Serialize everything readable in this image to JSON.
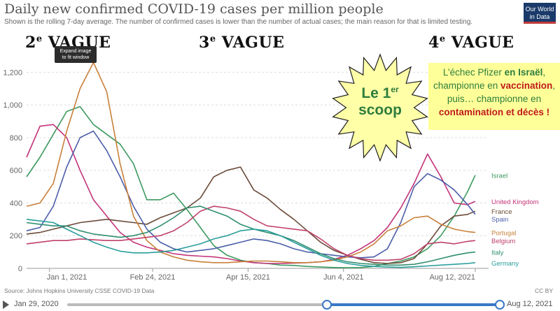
{
  "header": {
    "title": "Daily new confirmed COVID-19 cases per million people",
    "subtitle": "Shown is the rolling 7-day average. The number of confirmed cases is lower than the number of actual cases; the main reason for that is limited testing.",
    "logo_line1": "Our World",
    "logo_line2": "in Data"
  },
  "annotations": {
    "wave2_num": "2",
    "wave2_sup": "e",
    "wave2_word": " VAGUE",
    "wave3_num": "3",
    "wave3_sup": "e",
    "wave3_word": " VAGUE",
    "wave4_num": "4",
    "wave4_sup": "e",
    "wave4_word": " VAGUE",
    "tooltip_line1": "Expand image",
    "tooltip_line2": "to fit window",
    "star_line1": "Le 1",
    "star_sup": "er",
    "star_line2": "scoop",
    "callout_l1a": "L’échec Pfizer ",
    "callout_l1b": "en Israël",
    "callout_l1c": ",",
    "callout_l2a": "championne en ",
    "callout_l2b": "vaccination",
    "callout_l2c": ",",
    "callout_l3": "puis… championne en",
    "callout_l4a": "contamination et décès",
    "callout_l4b": " !"
  },
  "footer": {
    "source": "Source: Johns Hopkins University CSSE COVID-19 Data",
    "license": "CC BY"
  },
  "timeline": {
    "start_label": "Jan 29, 2020",
    "end_label": "Aug 12, 2021",
    "selected_start_fraction": 0.6,
    "selected_end_fraction": 1.0
  },
  "colors": {
    "Israel": "#3c9a5f",
    "United Kingdom": "#c2347a",
    "France": "#6b4b3a",
    "Spain": "#4c5ea9",
    "Portugal": "#c8803a",
    "Belgium": "#c0416a",
    "Italy": "#2f8f6f",
    "Germany": "#2a9d9d"
  },
  "chart_data": {
    "type": "line",
    "title": "Daily new confirmed COVID-19 cases per million people",
    "xlabel": "",
    "ylabel": "",
    "ylim": [
      0,
      1300
    ],
    "y_ticks": [
      0,
      200,
      400,
      600,
      800,
      1000,
      1200
    ],
    "y_tick_labels": [
      "0",
      "200",
      "400",
      "600",
      "800",
      "1,000",
      "1,200"
    ],
    "x_ticks": [
      "2021-01-01",
      "2021-02-24",
      "2021-04-15",
      "2021-06-04",
      "2021-08-12"
    ],
    "x_tick_labels": [
      "Jan 1, 2021",
      "Feb 24, 2021",
      "Apr 15, 2021",
      "Jun 4, 2021",
      "Aug 12, 2021"
    ],
    "xlim": [
      "2020-12-20",
      "2021-08-19"
    ],
    "grid": true,
    "legend": "line-end labels",
    "series": [
      {
        "name": "Israel",
        "x": [
          "2020-12-20",
          "2020-12-27",
          "2021-01-03",
          "2021-01-10",
          "2021-01-17",
          "2021-01-24",
          "2021-01-31",
          "2021-02-07",
          "2021-02-14",
          "2021-02-21",
          "2021-02-28",
          "2021-03-07",
          "2021-03-14",
          "2021-03-21",
          "2021-03-28",
          "2021-04-04",
          "2021-04-11",
          "2021-04-18",
          "2021-04-25",
          "2021-05-02",
          "2021-05-09",
          "2021-05-16",
          "2021-05-23",
          "2021-05-30",
          "2021-06-06",
          "2021-06-13",
          "2021-06-20",
          "2021-06-27",
          "2021-07-04",
          "2021-07-11",
          "2021-07-18",
          "2021-07-25",
          "2021-08-01",
          "2021-08-08",
          "2021-08-12"
        ],
        "values": [
          560,
          680,
          820,
          960,
          990,
          880,
          820,
          760,
          640,
          420,
          420,
          460,
          360,
          250,
          140,
          80,
          50,
          35,
          30,
          20,
          18,
          12,
          8,
          5,
          4,
          5,
          12,
          30,
          45,
          70,
          120,
          200,
          320,
          470,
          570
        ]
      },
      {
        "name": "United Kingdom",
        "x": [
          "2020-12-20",
          "2020-12-27",
          "2021-01-03",
          "2021-01-10",
          "2021-01-17",
          "2021-01-24",
          "2021-01-31",
          "2021-02-07",
          "2021-02-14",
          "2021-02-21",
          "2021-02-28",
          "2021-03-07",
          "2021-03-14",
          "2021-03-21",
          "2021-03-28",
          "2021-04-04",
          "2021-04-11",
          "2021-04-18",
          "2021-04-25",
          "2021-05-02",
          "2021-05-09",
          "2021-05-16",
          "2021-05-23",
          "2021-05-30",
          "2021-06-06",
          "2021-06-13",
          "2021-06-20",
          "2021-06-27",
          "2021-07-04",
          "2021-07-11",
          "2021-07-18",
          "2021-07-25",
          "2021-08-01",
          "2021-08-08",
          "2021-08-12"
        ],
        "values": [
          680,
          870,
          880,
          800,
          600,
          420,
          320,
          220,
          160,
          130,
          110,
          90,
          80,
          75,
          70,
          60,
          45,
          35,
          30,
          30,
          32,
          35,
          40,
          55,
          80,
          120,
          170,
          250,
          370,
          520,
          700,
          560,
          400,
          390,
          410
        ]
      },
      {
        "name": "France",
        "x": [
          "2020-12-20",
          "2020-12-27",
          "2021-01-03",
          "2021-01-10",
          "2021-01-17",
          "2021-01-24",
          "2021-01-31",
          "2021-02-07",
          "2021-02-14",
          "2021-02-21",
          "2021-02-28",
          "2021-03-07",
          "2021-03-14",
          "2021-03-21",
          "2021-03-28",
          "2021-04-04",
          "2021-04-11",
          "2021-04-18",
          "2021-04-25",
          "2021-05-02",
          "2021-05-09",
          "2021-05-16",
          "2021-05-23",
          "2021-05-30",
          "2021-06-06",
          "2021-06-13",
          "2021-06-20",
          "2021-06-27",
          "2021-07-04",
          "2021-07-11",
          "2021-07-18",
          "2021-07-25",
          "2021-08-01",
          "2021-08-08",
          "2021-08-12"
        ],
        "values": [
          210,
          220,
          240,
          260,
          280,
          290,
          300,
          290,
          280,
          270,
          310,
          340,
          370,
          430,
          560,
          600,
          620,
          480,
          430,
          360,
          300,
          230,
          160,
          110,
          80,
          55,
          35,
          30,
          35,
          60,
          150,
          260,
          320,
          330,
          350
        ]
      },
      {
        "name": "Spain",
        "x": [
          "2020-12-20",
          "2020-12-27",
          "2021-01-03",
          "2021-01-10",
          "2021-01-17",
          "2021-01-24",
          "2021-01-31",
          "2021-02-07",
          "2021-02-14",
          "2021-02-21",
          "2021-02-28",
          "2021-03-07",
          "2021-03-14",
          "2021-03-21",
          "2021-03-28",
          "2021-04-04",
          "2021-04-11",
          "2021-04-18",
          "2021-04-25",
          "2021-05-02",
          "2021-05-09",
          "2021-05-16",
          "2021-05-23",
          "2021-05-30",
          "2021-06-06",
          "2021-06-13",
          "2021-06-20",
          "2021-06-27",
          "2021-07-04",
          "2021-07-11",
          "2021-07-18",
          "2021-07-25",
          "2021-08-01",
          "2021-08-08",
          "2021-08-12"
        ],
        "values": [
          230,
          250,
          380,
          620,
          800,
          840,
          720,
          560,
          380,
          240,
          160,
          120,
          100,
          110,
          120,
          140,
          160,
          180,
          170,
          150,
          120,
          100,
          90,
          80,
          70,
          65,
          70,
          120,
          280,
          500,
          580,
          540,
          480,
          390,
          330
        ]
      },
      {
        "name": "Portugal",
        "x": [
          "2020-12-20",
          "2020-12-27",
          "2021-01-03",
          "2021-01-10",
          "2021-01-17",
          "2021-01-24",
          "2021-01-31",
          "2021-02-07",
          "2021-02-14",
          "2021-02-21",
          "2021-02-28",
          "2021-03-07",
          "2021-03-14",
          "2021-03-21",
          "2021-03-28",
          "2021-04-04",
          "2021-04-11",
          "2021-04-18",
          "2021-04-25",
          "2021-05-02",
          "2021-05-09",
          "2021-05-16",
          "2021-05-23",
          "2021-05-30",
          "2021-06-06",
          "2021-06-13",
          "2021-06-20",
          "2021-06-27",
          "2021-07-04",
          "2021-07-11",
          "2021-07-18",
          "2021-07-25",
          "2021-08-01",
          "2021-08-08",
          "2021-08-12"
        ],
        "values": [
          380,
          400,
          520,
          840,
          1100,
          1260,
          1080,
          640,
          320,
          170,
          100,
          70,
          50,
          40,
          35,
          35,
          40,
          45,
          45,
          40,
          35,
          35,
          40,
          50,
          70,
          100,
          150,
          230,
          260,
          310,
          320,
          270,
          240,
          225,
          220
        ]
      },
      {
        "name": "Belgium",
        "x": [
          "2020-12-20",
          "2020-12-27",
          "2021-01-03",
          "2021-01-10",
          "2021-01-17",
          "2021-01-24",
          "2021-01-31",
          "2021-02-07",
          "2021-02-14",
          "2021-02-21",
          "2021-02-28",
          "2021-03-07",
          "2021-03-14",
          "2021-03-21",
          "2021-03-28",
          "2021-04-04",
          "2021-04-11",
          "2021-04-18",
          "2021-04-25",
          "2021-05-02",
          "2021-05-09",
          "2021-05-16",
          "2021-05-23",
          "2021-05-30",
          "2021-06-06",
          "2021-06-13",
          "2021-06-20",
          "2021-06-27",
          "2021-07-04",
          "2021-07-11",
          "2021-07-18",
          "2021-07-25",
          "2021-08-01",
          "2021-08-08",
          "2021-08-12"
        ],
        "values": [
          150,
          160,
          170,
          170,
          180,
          175,
          170,
          170,
          180,
          190,
          200,
          230,
          280,
          350,
          380,
          370,
          350,
          300,
          260,
          250,
          240,
          230,
          180,
          120,
          80,
          60,
          50,
          50,
          55,
          90,
          150,
          160,
          150,
          165,
          170
        ]
      },
      {
        "name": "Italy",
        "x": [
          "2020-12-20",
          "2020-12-27",
          "2021-01-03",
          "2021-01-10",
          "2021-01-17",
          "2021-01-24",
          "2021-01-31",
          "2021-02-07",
          "2021-02-14",
          "2021-02-21",
          "2021-02-28",
          "2021-03-07",
          "2021-03-14",
          "2021-03-21",
          "2021-03-28",
          "2021-04-04",
          "2021-04-11",
          "2021-04-18",
          "2021-04-25",
          "2021-05-02",
          "2021-05-09",
          "2021-05-16",
          "2021-05-23",
          "2021-05-30",
          "2021-06-06",
          "2021-06-13",
          "2021-06-20",
          "2021-06-27",
          "2021-07-04",
          "2021-07-11",
          "2021-07-18",
          "2021-07-25",
          "2021-08-01",
          "2021-08-08",
          "2021-08-12"
        ],
        "values": [
          280,
          270,
          260,
          260,
          230,
          210,
          200,
          190,
          200,
          220,
          260,
          310,
          370,
          380,
          350,
          320,
          270,
          240,
          220,
          200,
          170,
          130,
          90,
          60,
          40,
          30,
          25,
          20,
          20,
          25,
          40,
          60,
          80,
          95,
          100
        ]
      },
      {
        "name": "Germany",
        "x": [
          "2020-12-20",
          "2020-12-27",
          "2021-01-03",
          "2021-01-10",
          "2021-01-17",
          "2021-01-24",
          "2021-01-31",
          "2021-02-07",
          "2021-02-14",
          "2021-02-21",
          "2021-02-28",
          "2021-03-07",
          "2021-03-14",
          "2021-03-21",
          "2021-03-28",
          "2021-04-04",
          "2021-04-11",
          "2021-04-18",
          "2021-04-25",
          "2021-05-02",
          "2021-05-09",
          "2021-05-16",
          "2021-05-23",
          "2021-05-30",
          "2021-06-06",
          "2021-06-13",
          "2021-06-20",
          "2021-06-27",
          "2021-07-04",
          "2021-07-11",
          "2021-07-18",
          "2021-07-25",
          "2021-08-01",
          "2021-08-08",
          "2021-08-12"
        ],
        "values": [
          300,
          290,
          280,
          240,
          200,
          160,
          130,
          105,
          95,
          95,
          100,
          110,
          130,
          150,
          180,
          200,
          230,
          240,
          230,
          200,
          160,
          120,
          80,
          50,
          30,
          18,
          12,
          8,
          6,
          10,
          15,
          20,
          25,
          30,
          35
        ]
      }
    ]
  }
}
